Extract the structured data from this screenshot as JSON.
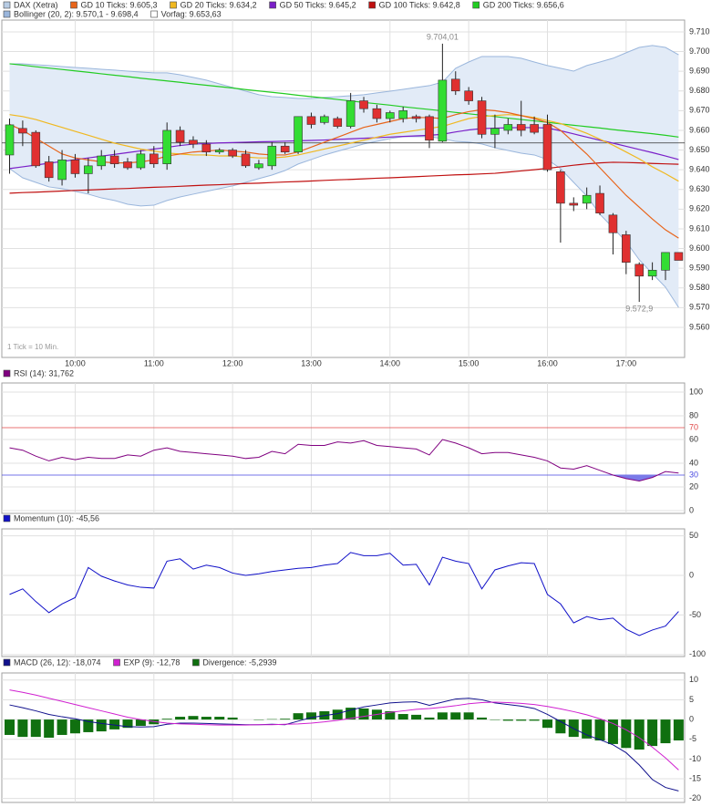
{
  "chart_data": [
    {
      "type": "candlestick",
      "title": "DAX (Xetra)",
      "color": "#b8cce4",
      "up_color": "#33dd33",
      "down_color": "#e03030",
      "categories": [
        null,
        null,
        null,
        null,
        null,
        "10:00",
        null,
        null,
        null,
        null,
        null,
        "11:00",
        null,
        null,
        null,
        null,
        null,
        "12:00",
        null,
        null,
        null,
        null,
        null,
        "13:00",
        null,
        null,
        null,
        null,
        null,
        "14:00",
        null,
        null,
        null,
        null,
        null,
        "15:00",
        null,
        null,
        null,
        null,
        null,
        "16:00",
        null,
        null,
        null,
        null,
        null,
        "17:00",
        null,
        null,
        null,
        null
      ],
      "open": [
        9647.5,
        9661,
        9659,
        9644,
        9635,
        9645,
        9638,
        9642,
        9647,
        9644,
        9641,
        9648,
        9643,
        9660,
        9655,
        9653,
        9649,
        9650,
        9648,
        9641,
        9642,
        9652,
        9649,
        9667,
        9664,
        9666,
        9662,
        9675,
        9671,
        9666,
        9666,
        9667,
        9667,
        9654.5,
        9686,
        9680,
        9675,
        9658,
        9660,
        9663,
        9663,
        9663,
        9639,
        9623,
        9623,
        9628,
        9617,
        9607,
        9592,
        9586,
        9589,
        9598
      ],
      "high": [
        9666,
        9665,
        9660,
        9647,
        9650,
        9648,
        9646,
        9650,
        9650,
        9646,
        9650,
        9652,
        9664,
        9662,
        9657,
        9655,
        9651,
        9651,
        9650,
        9645,
        9654,
        9654,
        9667,
        9669,
        9668,
        9667,
        9679,
        9677,
        9673,
        9670,
        9672,
        9668,
        9668,
        9704.01,
        9690,
        9682,
        9677,
        9668,
        9666,
        9675,
        9667,
        9668,
        9640,
        9626,
        9631,
        9632,
        9618,
        9609,
        9593,
        9593,
        9598,
        9598
      ],
      "low": [
        9638,
        9652,
        9641,
        9634,
        9632,
        9636,
        9628,
        9640,
        9641,
        9640,
        9640,
        9641,
        9640,
        9652,
        9651,
        9647,
        9648,
        9646,
        9641,
        9640,
        9640,
        9648,
        9648,
        9661,
        9663,
        9661,
        9661,
        9669,
        9664,
        9664,
        9664,
        9664,
        9651,
        9654,
        9678,
        9673,
        9656,
        9651,
        9658,
        9657,
        9658,
        9639,
        9603,
        9619,
        9620,
        9617,
        9597,
        9587,
        9572.9,
        9584,
        9584,
        9594
      ],
      "close": [
        9662.8,
        9658.6,
        9642,
        9636,
        9645,
        9638,
        9642,
        9647,
        9643,
        9641,
        9648,
        9643,
        9660,
        9654,
        9653,
        9649,
        9650,
        9647,
        9642,
        9643,
        9652,
        9649,
        9667,
        9663,
        9667,
        9662,
        9675,
        9671,
        9666,
        9669,
        9670,
        9666,
        9655,
        9685.5,
        9680,
        9675,
        9658,
        9661,
        9663,
        9660,
        9659,
        9640,
        9623,
        9622,
        9627,
        9618,
        9608,
        9593,
        9586,
        9589,
        9598,
        9594
      ],
      "overlays": [
        {
          "name": "GD 10 Ticks: 9.605,3",
          "color": "#e8641a",
          "values": [
            9663,
            9660,
            9656,
            9652,
            9648,
            9646,
            9645,
            9644,
            9643.5,
            9643.5,
            9644,
            9645,
            9647,
            9648,
            9649,
            9649.5,
            9650,
            9649.5,
            9649,
            9648,
            9647.5,
            9647.5,
            9649,
            9651.5,
            9654,
            9656.5,
            9659,
            9661.5,
            9663,
            9664.5,
            9666,
            9666.5,
            9666.5,
            9666,
            9668,
            9669.5,
            9670.5,
            9670,
            9669,
            9667.5,
            9666,
            9664,
            9660,
            9654,
            9648,
            9641,
            9634,
            9627,
            9621,
            9615,
            9609.5,
            9605.3
          ]
        },
        {
          "name": "GD 20 Ticks: 9.634,2",
          "color": "#f0b820",
          "values": [
            9668,
            9667,
            9665.5,
            9663.5,
            9661.5,
            9659.5,
            9657.5,
            9655.5,
            9653.5,
            9652,
            9650.5,
            9649.5,
            9648.5,
            9648,
            9647.5,
            9647.5,
            9647,
            9647,
            9646.5,
            9646,
            9646,
            9646.5,
            9647.5,
            9649,
            9650.5,
            9652,
            9653.5,
            9655,
            9656.5,
            9658,
            9659,
            9660,
            9661,
            9662,
            9664,
            9666,
            9667,
            9667.5,
            9668,
            9667.5,
            9666.5,
            9665,
            9663.5,
            9661,
            9658.5,
            9655.5,
            9652.5,
            9649,
            9645.5,
            9641.5,
            9638,
            9634.2
          ]
        },
        {
          "name": "GD 50 Ticks: 9.645,2",
          "color": "#7a1fc8",
          "values": [
            9640.6,
            9641.5,
            9642.4,
            9643.3,
            9644.2,
            9645.1,
            9646,
            9646.9,
            9647.8,
            9648.7,
            9649.6,
            9650.5,
            9651.4,
            9652.3,
            9653,
            9653.3,
            9653.6,
            9653.8,
            9654,
            9654.2,
            9654.3,
            9654.5,
            9654.7,
            9654.9,
            9655.1,
            9655.4,
            9655.7,
            9656,
            9656.3,
            9656.6,
            9656.9,
            9657.2,
            9657.5,
            9658,
            9659.2,
            9660.2,
            9660.9,
            9661.1,
            9661.3,
            9661.4,
            9661.4,
            9661.2,
            9659.8,
            9658.2,
            9656.6,
            9655,
            9653.5,
            9651.9,
            9650.3,
            9648.7,
            9647,
            9645.2
          ]
        },
        {
          "name": "GD 100 Ticks: 9.642,8",
          "color": "#c01010",
          "values": [
            9628.1,
            9628.4,
            9628.6,
            9628.9,
            9629.2,
            9629.5,
            9629.7,
            9630,
            9630.3,
            9630.5,
            9630.8,
            9631.1,
            9631.3,
            9631.6,
            9631.9,
            9632.2,
            9632.4,
            9632.7,
            9633,
            9633.2,
            9633.5,
            9633.8,
            9634,
            9634.3,
            9634.6,
            9634.9,
            9635.1,
            9635.4,
            9635.7,
            9635.9,
            9636.2,
            9636.5,
            9636.8,
            9637.1,
            9637.4,
            9637.6,
            9637.9,
            9638.2,
            9638.8,
            9639.4,
            9640,
            9640.7,
            9641.5,
            9642.3,
            9643,
            9643.5,
            9643.8,
            9643.7,
            9643.5,
            9643.2,
            9643,
            9642.8
          ]
        },
        {
          "name": "GD 200 Ticks: 9.656,6",
          "color": "#22cc22",
          "values": [
            9693.8,
            9693.1,
            9692.3,
            9691.6,
            9690.9,
            9690.2,
            9689.5,
            9688.7,
            9688,
            9687.3,
            9686.5,
            9685.8,
            9685.1,
            9684.4,
            9683.6,
            9682.9,
            9682.2,
            9681.5,
            9680.7,
            9680,
            9679.3,
            9678.6,
            9677.8,
            9677.1,
            9676.4,
            9675.7,
            9674.9,
            9674.2,
            9673.5,
            9672.8,
            9672,
            9671.3,
            9670.6,
            9669.9,
            9669.1,
            9668.4,
            9667.7,
            9667,
            9666.2,
            9665.5,
            9664.8,
            9664.1,
            9663.3,
            9662.6,
            9661.9,
            9661.2,
            9660.4,
            9659.7,
            9659,
            9658.3,
            9657.5,
            9656.6
          ]
        }
      ],
      "band": {
        "name": "Bollinger (20, 2): 9.570,1 - 9.698,4",
        "color": "#9ab6dc",
        "fill": "#e2ebf7",
        "upper": [
          9693.8,
          9693.8,
          9693.3,
          9692.9,
          9692.4,
          9691.9,
          9691.5,
          9691,
          9690.6,
          9690.1,
          9689.6,
          9689.2,
          9689.2,
          9688.2,
          9686.9,
          9685.5,
          9683.6,
          9681.8,
          9679.9,
          9678.1,
          9677.1,
          9676.7,
          9676.2,
          9676.2,
          9676.7,
          9677.1,
          9677.6,
          9678.1,
          9679,
          9679.9,
          9680.8,
          9681.8,
          9682.7,
          9684.5,
          9691.5,
          9694.7,
          9697.5,
          9697.5,
          9697.5,
          9696.6,
          9694.7,
          9692.9,
          9691.5,
          9690.1,
          9692.9,
          9694.7,
          9696.6,
          9699.4,
          9702.1,
          9703.1,
          9702.1,
          9698.4
        ],
        "lower": [
          9640.6,
          9635.9,
          9633.6,
          9631.3,
          9630.4,
          9629,
          9627.6,
          9625.7,
          9624.4,
          9622.5,
          9621.6,
          9622,
          9624.4,
          9626.2,
          9627.6,
          9629,
          9630.4,
          9631.8,
          9633.6,
          9635.5,
          9637.3,
          9639.6,
          9642.9,
          9645.2,
          9647.5,
          9649.4,
          9651.2,
          9653.1,
          9654.4,
          9655.8,
          9656.8,
          9656.8,
          9656.8,
          9655.8,
          9654.4,
          9654,
          9653.1,
          9651.2,
          9649.8,
          9648.4,
          9647.5,
          9645.2,
          9640.6,
          9633.6,
          9626.7,
          9617.4,
          9610.5,
          9603.5,
          9594.3,
          9587.3,
          9580.4,
          9570.1
        ]
      },
      "reference": {
        "name": "Vorfag: 9.653,63",
        "value": 9653.63,
        "color": "#333333"
      },
      "high_label": "9.704,01",
      "low_label": "9.572,9",
      "note": "1 Tick = 10 Min.",
      "ylim": [
        9544.7,
        9716
      ],
      "yticks": [
        {
          "value": 9560,
          "label": "9.560"
        },
        {
          "value": 9570,
          "label": "9.570"
        },
        {
          "value": 9580,
          "label": "9.580"
        },
        {
          "value": 9590,
          "label": "9.590"
        },
        {
          "value": 9600,
          "label": "9.600"
        },
        {
          "value": 9610,
          "label": "9.610"
        },
        {
          "value": 9620,
          "label": "9.620"
        },
        {
          "value": 9630,
          "label": "9.630"
        },
        {
          "value": 9640,
          "label": "9.640"
        },
        {
          "value": 9650,
          "label": "9.650"
        },
        {
          "value": 9660,
          "label": "9.660"
        },
        {
          "value": 9670,
          "label": "9.670"
        },
        {
          "value": 9680,
          "label": "9.680"
        },
        {
          "value": 9690,
          "label": "9.690"
        },
        {
          "value": 9700,
          "label": "9.700"
        },
        {
          "value": 9710,
          "label": "9.710"
        }
      ],
      "grid": true
    },
    {
      "type": "line",
      "series": [
        {
          "name": "RSI (14): 31,762",
          "color": "#800080",
          "values": [
            53,
            51,
            46,
            42,
            45,
            43,
            45,
            44,
            44,
            47,
            46,
            51,
            53,
            50,
            49,
            48,
            47,
            46,
            44,
            45,
            50,
            48,
            56,
            55,
            55,
            58,
            57,
            59,
            55,
            54,
            53,
            52,
            47,
            60,
            57,
            53,
            48,
            49,
            49,
            47,
            45,
            42,
            36,
            35,
            38,
            34,
            30,
            27,
            25,
            28,
            33,
            31.762
          ]
        }
      ],
      "levels": [
        {
          "value": 70,
          "color": "#e04848"
        },
        {
          "value": 30,
          "color": "#4848e0",
          "fill": "#7a7ae8"
        }
      ],
      "ylim": [
        -2.3,
        107.7
      ],
      "yticks": [
        0,
        20,
        40,
        60,
        80,
        100
      ],
      "grid": true
    },
    {
      "type": "line",
      "series": [
        {
          "name": "Momentum (10): -45,56",
          "color": "#1010c8",
          "values": [
            -24,
            -17,
            -33,
            -47,
            -36,
            -28,
            10,
            -1,
            -7,
            -12,
            -15,
            -16,
            18,
            21,
            8,
            13,
            10,
            3,
            0,
            2,
            5,
            7,
            9,
            10,
            13,
            15,
            29,
            25,
            25,
            28,
            13,
            14,
            -12,
            23,
            18,
            15,
            -17,
            7,
            12,
            16,
            15,
            -24,
            -36,
            -60,
            -52,
            -56,
            -54,
            -68,
            -76,
            -69,
            -64,
            -45.56
          ]
        }
      ],
      "ylim": [
        -102.5,
        58.8
      ],
      "yticks": [
        50,
        0,
        -50,
        -100
      ],
      "grid": true
    },
    {
      "type": "line",
      "series": [
        {
          "name": "MACD (26, 12): -18,074",
          "color": "#10108c",
          "values": [
            3.7,
            3.0,
            2.2,
            1.3,
            0.7,
            0.2,
            -0.5,
            -1.0,
            -1.4,
            -1.8,
            -1.9,
            -1.8,
            -1.2,
            -0.9,
            -0.9,
            -1.0,
            -1.1,
            -1.2,
            -1.3,
            -1.3,
            -1.2,
            -1.3,
            -0.4,
            0.5,
            1.0,
            1.5,
            2.4,
            3.2,
            3.7,
            4.2,
            4.4,
            4.5,
            3.6,
            4.4,
            5.2,
            5.4,
            5.0,
            4.2,
            3.8,
            3.4,
            2.8,
            1.3,
            -0.5,
            -2.3,
            -3.9,
            -5.1,
            -6.4,
            -8.4,
            -11.5,
            -15.2,
            -17.2,
            -18.074
          ]
        },
        {
          "name": "EXP (9): -12,78",
          "color": "#d020d0",
          "values": [
            7.5,
            6.9,
            6.2,
            5.4,
            4.6,
            3.8,
            3.0,
            2.2,
            1.4,
            0.6,
            0,
            -0.5,
            -0.9,
            -1.1,
            -1.2,
            -1.3,
            -1.4,
            -1.4,
            -1.4,
            -1.3,
            -1.3,
            -1.2,
            -1.1,
            -0.9,
            -0.6,
            -0.2,
            0.3,
            0.8,
            1.3,
            1.8,
            2.2,
            2.6,
            2.8,
            3.1,
            3.5,
            4.0,
            4.3,
            4.4,
            4.3,
            4.1,
            3.8,
            3.3,
            2.7,
            2.0,
            1.2,
            0.2,
            -1.0,
            -2.6,
            -4.6,
            -7.0,
            -9.7,
            -12.78
          ]
        },
        {
          "name": "Divergence: -5,2939",
          "color": "#107010",
          "type": "bar",
          "values": [
            -3.9,
            -4.4,
            -4.4,
            -4.6,
            -3.9,
            -3.5,
            -3.2,
            -3.0,
            -2.5,
            -2.1,
            -1.6,
            -1.2,
            0.2,
            0.7,
            0.9,
            0.7,
            0.7,
            0.5,
            0,
            -0.1,
            0.1,
            0.2,
            1.6,
            1.8,
            2.1,
            2.5,
            3.0,
            2.8,
            2.5,
            2.1,
            1.4,
            1.2,
            0.5,
            1.8,
            1.8,
            1.8,
            0.5,
            -0.1,
            -0.3,
            -0.3,
            -0.3,
            -2.1,
            -3.5,
            -4.4,
            -4.8,
            -5.3,
            -6.2,
            -7.2,
            -7.6,
            -6.7,
            -6.0,
            -5.2939
          ]
        }
      ],
      "ylim": [
        -21,
        11.8
      ],
      "yticks": [
        10,
        5,
        0,
        -5,
        -10,
        -15,
        -20
      ],
      "grid": true
    }
  ]
}
